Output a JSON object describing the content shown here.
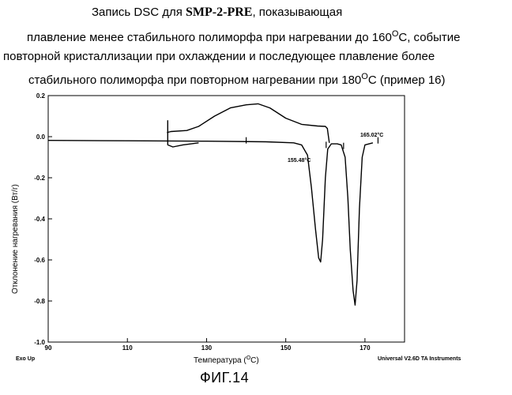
{
  "caption": {
    "line1_prefix": "Запись DSC для ",
    "line1_sample": "SMP-2-PRE",
    "line1_suffix": ", показывающая",
    "line2_pre": "плавление менее стабильного полиморфа при нагревании до 160",
    "line2_sup": "O",
    "line2_post": "C, событие",
    "line3": "повторной кристаллизации при охлаждении и последующее плавление более",
    "line4_pre": "стабильного полиморфа при повторном нагревании при 180",
    "line4_sup": "O",
    "line4_post": "C (пример 16)"
  },
  "chart_data": {
    "type": "line",
    "xlabel_pre": "Температура (",
    "xlabel_sup": "O",
    "xlabel_post": "C)",
    "ylabel": "Отклонение нагревания (Вт/г)",
    "xlim": [
      90,
      180
    ],
    "ylim": [
      -1.0,
      0.2
    ],
    "x_ticks": [
      "90",
      "110",
      "130",
      "150",
      "170"
    ],
    "y_ticks": [
      "0.2",
      "0.0",
      "-0.2",
      "-0.4",
      "-0.6",
      "-0.8",
      "-1.0"
    ],
    "bottom_left_note": "Exo Up",
    "bottom_right_note": "Universal V2.6D TA Instruments",
    "annotations": [
      {
        "text": "155.48°C",
        "x": 155.48
      },
      {
        "text": "165.02°C",
        "x": 165.02
      }
    ],
    "series": [
      {
        "values": [
          [
            90,
            -0.018
          ],
          [
            110,
            -0.02
          ],
          [
            130,
            -0.022
          ],
          [
            145,
            -0.025
          ],
          [
            152,
            -0.03
          ],
          [
            154,
            -0.04
          ],
          [
            155.5,
            -0.09
          ],
          [
            156.5,
            -0.25
          ],
          [
            157.5,
            -0.45
          ],
          [
            158.3,
            -0.59
          ],
          [
            158.8,
            -0.61
          ],
          [
            159.3,
            -0.5
          ],
          [
            160,
            -0.2
          ],
          [
            160.6,
            -0.06
          ],
          [
            161.5,
            -0.035
          ],
          [
            163,
            -0.035
          ],
          [
            164,
            -0.04
          ],
          [
            165,
            -0.1
          ],
          [
            165.7,
            -0.3
          ],
          [
            166.3,
            -0.55
          ],
          [
            167,
            -0.75
          ],
          [
            167.5,
            -0.82
          ],
          [
            168,
            -0.7
          ],
          [
            168.6,
            -0.35
          ],
          [
            169.3,
            -0.1
          ],
          [
            170,
            -0.04
          ],
          [
            172,
            -0.03
          ]
        ]
      },
      {
        "values": [
          [
            120,
            0.02
          ],
          [
            121,
            0.025
          ],
          [
            125,
            0.03
          ],
          [
            128,
            0.05
          ],
          [
            132,
            0.1
          ],
          [
            136,
            0.14
          ],
          [
            140,
            0.155
          ],
          [
            143,
            0.16
          ],
          [
            146,
            0.14
          ],
          [
            150,
            0.09
          ],
          [
            154,
            0.06
          ],
          [
            158,
            0.052
          ],
          [
            160,
            0.05
          ],
          [
            160.5,
            0.04
          ],
          [
            161,
            -0.03
          ]
        ]
      },
      {
        "values": [
          [
            120.2,
            0.08
          ],
          [
            120.2,
            -0.04
          ],
          [
            121.5,
            -0.05
          ],
          [
            124,
            -0.04
          ],
          [
            128,
            -0.03
          ]
        ]
      }
    ]
  },
  "figure_label": "ФИГ.14"
}
